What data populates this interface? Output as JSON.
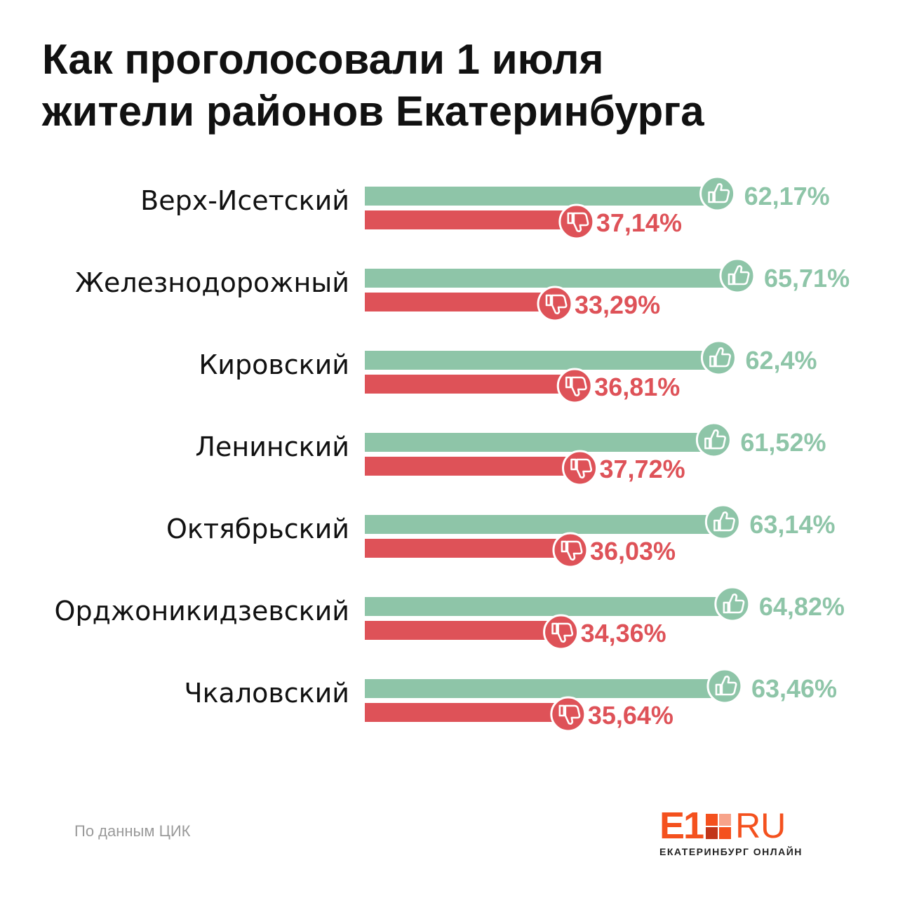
{
  "header": {
    "title_line1": "Как проголосовали 1 июля",
    "title_line2": "жители районов Екатеринбурга"
  },
  "colors": {
    "yes": "#8ec5a8",
    "no": "#de5258",
    "logo": "#f4511e"
  },
  "icons": {
    "yes": "thumbs-up-icon",
    "no": "thumbs-down-icon"
  },
  "chart_data": {
    "type": "bar",
    "orientation": "horizontal",
    "categories": [
      "Верх-Исетский",
      "Железнодорожный",
      "Кировский",
      "Ленинский",
      "Октябрьский",
      "Орджоникидзевский",
      "Чкаловский"
    ],
    "series": [
      {
        "values": [
          62.17,
          65.71,
          62.4,
          61.52,
          63.14,
          64.82,
          63.46
        ],
        "labels": [
          "62,17%",
          "65,71%",
          "62,4%",
          "61,52%",
          "63,14%",
          "64,82%",
          "63,46%"
        ]
      },
      {
        "values": [
          37.14,
          33.29,
          36.81,
          37.72,
          36.03,
          34.36,
          35.64
        ],
        "labels": [
          "37,14%",
          "33,29%",
          "36,81%",
          "37,72%",
          "36,03%",
          "34,36%",
          "35,64%"
        ]
      }
    ],
    "title": "Как проголосовали 1 июля жители районов Екатеринбурга",
    "xlabel": "",
    "ylabel": "",
    "grid": false
  },
  "footer": {
    "source": "По данным ЦИК",
    "logo_mark": "E1",
    "logo_suffix": "RU",
    "logo_subtitle": "ЕКАТЕРИНБУРГ ОНЛАЙН"
  }
}
